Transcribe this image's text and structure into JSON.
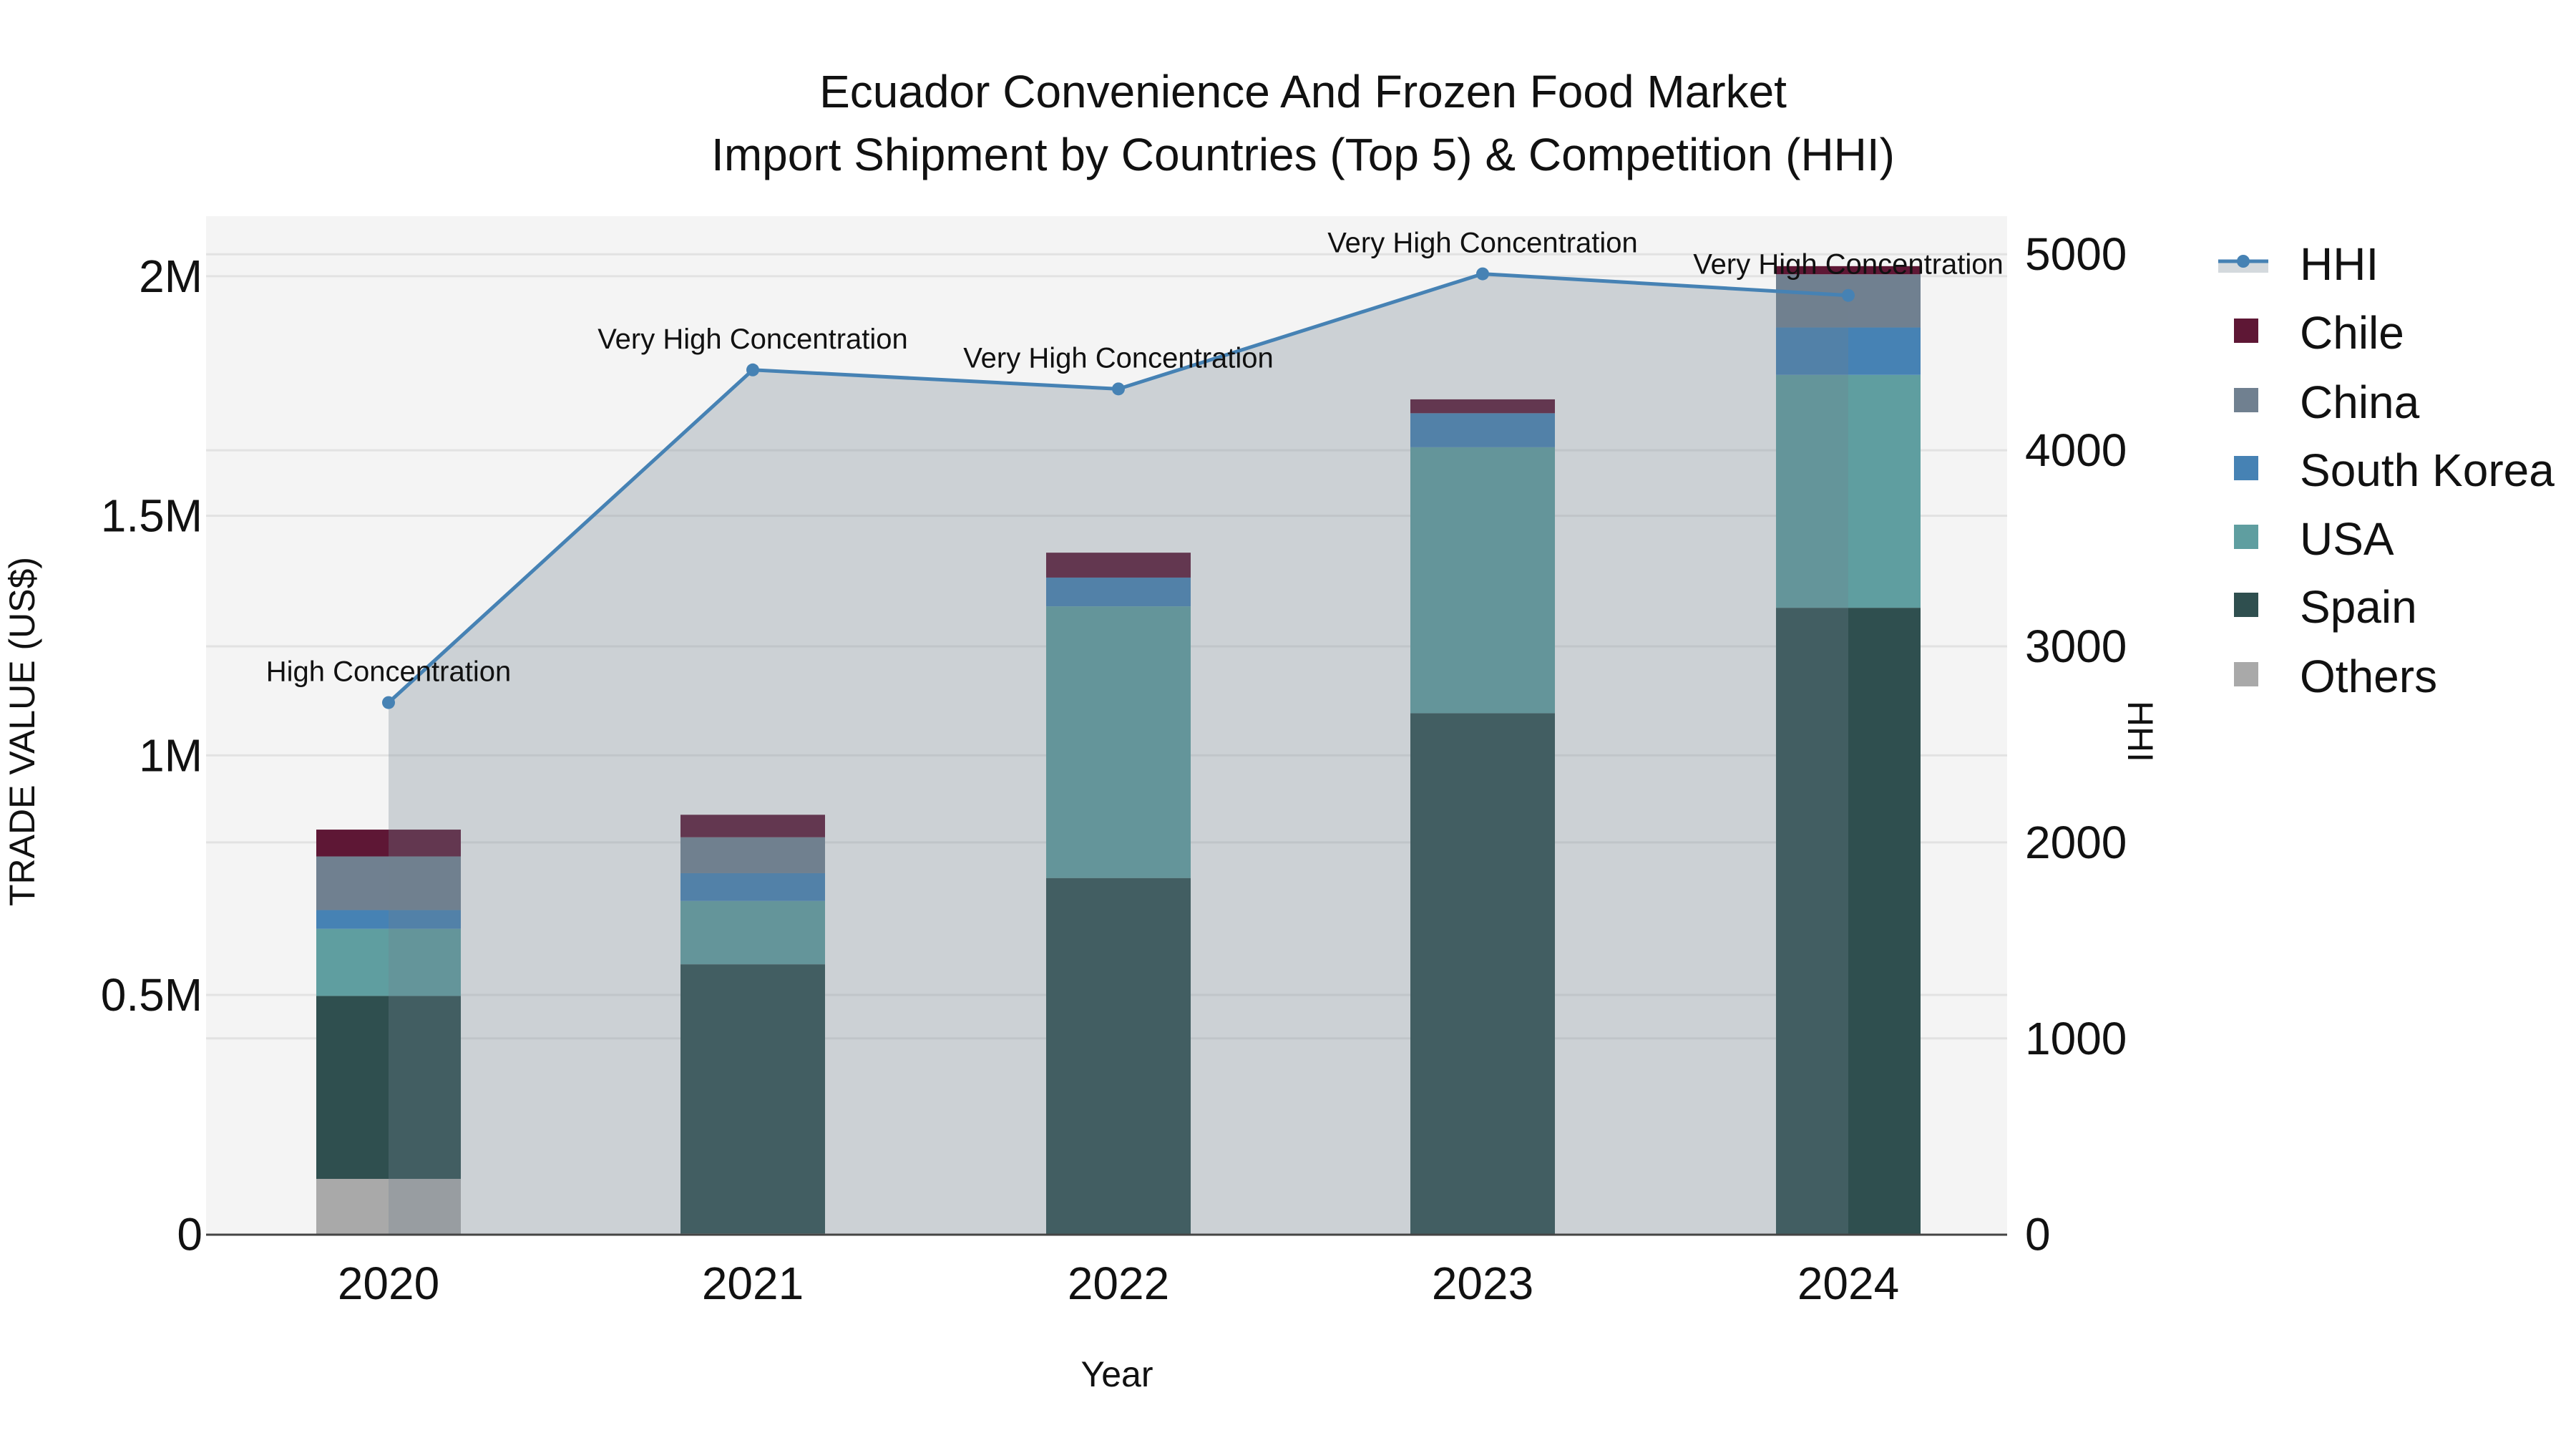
{
  "title": {
    "line1": "Ecuador Convenience And Frozen Food Market",
    "line2": "Import Shipment by Countries (Top 5) & Competition (HHI)"
  },
  "axes": {
    "x_title": "Year",
    "y_left_title": "TRADE VALUE (US$)",
    "y_right_title": "HHI",
    "y_left_ticks": [
      "0",
      "0.5M",
      "1M",
      "1.5M",
      "2M"
    ],
    "y_right_ticks": [
      "0",
      "1000",
      "2000",
      "3000",
      "4000",
      "5000"
    ],
    "x_ticks": [
      "2020",
      "2021",
      "2022",
      "2023",
      "2024"
    ]
  },
  "legend": {
    "items": [
      {
        "label": "HHI",
        "type": "line",
        "color": "#4682b4"
      },
      {
        "label": "Chile",
        "type": "bar",
        "color": "#5e1735"
      },
      {
        "label": "China",
        "type": "bar",
        "color": "#708090"
      },
      {
        "label": "South Korea",
        "type": "bar",
        "color": "#4682b4"
      },
      {
        "label": "USA",
        "type": "bar",
        "color": "#5f9ea0"
      },
      {
        "label": "Spain",
        "type": "bar",
        "color": "#2f4f4f"
      },
      {
        "label": "Others",
        "type": "bar",
        "color": "#a9a9a9"
      }
    ]
  },
  "colors": {
    "plot_bg": "#f4f4f4",
    "grid": "#e2e2e2",
    "hhi_line": "#4682b4",
    "hhi_fill": "#708090",
    "axis_line": "#444444"
  },
  "chart_data": {
    "type": "bar",
    "subtype": "stacked bar + line (secondary axis)",
    "title": "Ecuador Convenience And Frozen Food Market — Import Shipment by Countries (Top 5) & Competition (HHI)",
    "xlabel": "Year",
    "ylabel": "TRADE VALUE (US$)",
    "y2label": "HHI",
    "categories": [
      "2020",
      "2021",
      "2022",
      "2023",
      "2024"
    ],
    "ylim": [
      0,
      2125000
    ],
    "y2lim": [
      0,
      5194
    ],
    "grid": true,
    "legend_position": "right",
    "series": [
      {
        "name": "Others",
        "axis": "y",
        "type": "bar",
        "color": "#a9a9a9",
        "values": [
          116000,
          2000,
          0,
          0,
          0
        ]
      },
      {
        "name": "Spain",
        "axis": "y",
        "type": "bar",
        "color": "#2f4f4f",
        "values": [
          382000,
          562000,
          744000,
          1088000,
          1308000
        ]
      },
      {
        "name": "USA",
        "axis": "y",
        "type": "bar",
        "color": "#5f9ea0",
        "values": [
          140000,
          132000,
          567000,
          555000,
          486000
        ]
      },
      {
        "name": "South Korea",
        "axis": "y",
        "type": "bar",
        "color": "#4682b4",
        "values": [
          39000,
          58000,
          60000,
          71000,
          99000
        ]
      },
      {
        "name": "China",
        "axis": "y",
        "type": "bar",
        "color": "#708090",
        "values": [
          112000,
          75000,
          0,
          0,
          111000
        ]
      },
      {
        "name": "Chile",
        "axis": "y",
        "type": "bar",
        "color": "#5e1735",
        "values": [
          56000,
          47000,
          52000,
          29000,
          17000
        ]
      },
      {
        "name": "HHI",
        "axis": "y2",
        "type": "line",
        "color": "#4682b4",
        "fill": "tozeroy",
        "values": [
          2713,
          4410,
          4313,
          4900,
          4790
        ]
      }
    ],
    "annotations": [
      {
        "x": "2020",
        "text": "High Concentration"
      },
      {
        "x": "2021",
        "text": "Very High Concentration"
      },
      {
        "x": "2022",
        "text": "Very High Concentration"
      },
      {
        "x": "2023",
        "text": "Very High Concentration"
      },
      {
        "x": "2024",
        "text": "Very High Concentration"
      }
    ]
  }
}
